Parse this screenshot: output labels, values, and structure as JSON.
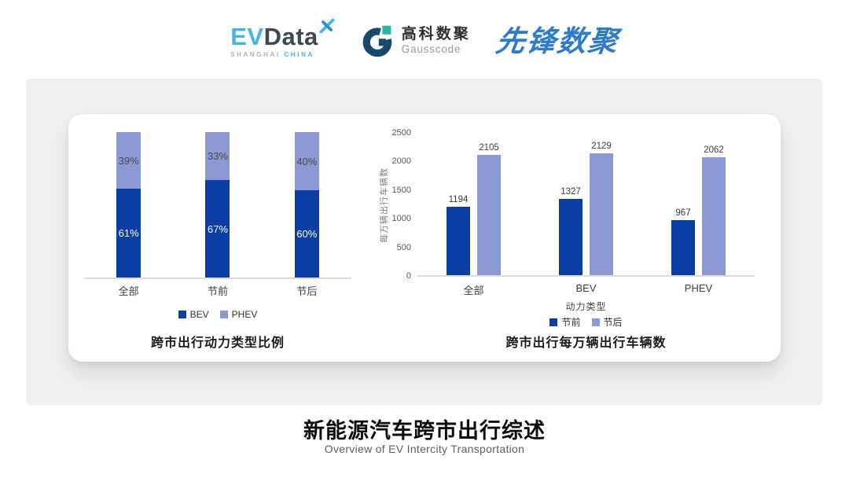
{
  "header": {
    "logos": [
      {
        "id": "evdata",
        "part1": "EV",
        "part2": "Data",
        "sub1": "SHANGHAI",
        "sub2": "CHINA",
        "color_primary": "#45b5e8",
        "color_secondary": "#3d4957"
      },
      {
        "id": "gausscode",
        "cn": "高科数聚",
        "en": "Gausscode",
        "color_primary": "#15496e",
        "color_accent": "#2ab5a5"
      },
      {
        "id": "pioneer",
        "text": "先锋数聚",
        "color_primary": "#2e7bc9"
      }
    ]
  },
  "chart_data": [
    {
      "type": "bar",
      "variant": "stacked-100",
      "title": "跨市出行动力类型比例",
      "categories": [
        "全部",
        "节前",
        "节后"
      ],
      "series": [
        {
          "name": "BEV",
          "color": "#0b3da2",
          "values": [
            61,
            67,
            60
          ]
        },
        {
          "name": "PHEV",
          "color": "#8d99d4",
          "values": [
            39,
            33,
            40
          ]
        }
      ],
      "value_suffix": "%",
      "ylim": [
        0,
        100
      ],
      "grid": false,
      "legend_position": "bottom"
    },
    {
      "type": "bar",
      "variant": "grouped",
      "title": "跨市出行每万辆出行车辆数",
      "xlabel": "动力类型",
      "ylabel": "每万辆出行车辆数",
      "categories": [
        "全部",
        "BEV",
        "PHEV"
      ],
      "series": [
        {
          "name": "节前",
          "color": "#0b3da2",
          "values": [
            1194,
            1327,
            967
          ]
        },
        {
          "name": "节后",
          "color": "#8d99d4",
          "values": [
            2105,
            2129,
            2062
          ]
        }
      ],
      "ylim": [
        0,
        2500
      ],
      "yticks": [
        0,
        500,
        1000,
        1500,
        2000,
        2500
      ],
      "grid": false,
      "legend_position": "bottom"
    }
  ],
  "footer": {
    "title": "新能源汽车跨市出行综述",
    "subtitle": "Overview of EV Intercity Transportation"
  }
}
